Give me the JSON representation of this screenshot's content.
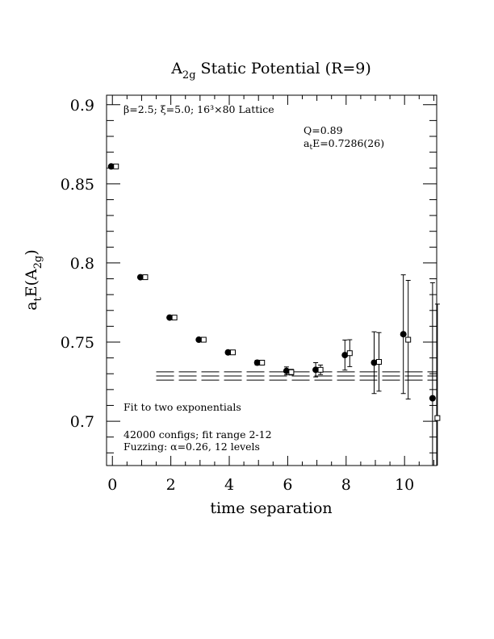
{
  "chart_data": {
    "type": "scatter",
    "title": "A",
    "title_sub": "2g",
    "title_rest": " Static Potential (R=9)",
    "xlabel": "time separation",
    "ylabel": {
      "a": "a",
      "t": "t",
      "E": "E(A",
      "sub": "2g",
      "close": ")"
    },
    "xlim": [
      -0.2,
      11.1
    ],
    "ylim": [
      0.672,
      0.906
    ],
    "x_ticks": [
      0,
      2,
      4,
      6,
      8,
      10
    ],
    "x_tick_labels": [
      "0",
      "2",
      "4",
      "6",
      "8",
      "10"
    ],
    "y_ticks": [
      0.7,
      0.75,
      0.8,
      0.85,
      0.9
    ],
    "y_tick_labels": [
      "0.7",
      "0.75",
      "0.8",
      "0.85",
      "0.9"
    ],
    "annotations": {
      "lattice": "β=2.5; ξ=5.0; 16³×80 Lattice",
      "q": "Q=0.89",
      "fit_a": "a",
      "fit_t": "t",
      "fit_rest": "E=0.7286(26)",
      "fit_method": "Fit to two exponentials",
      "configs": "42000 configs; fit range 2-12",
      "fuzzing": "Fuzzing: α=0.26, 12 levels"
    },
    "series": [
      {
        "marker": "filled-circle",
        "points": [
          {
            "x": 0,
            "y": 0.861,
            "err": 0.0006
          },
          {
            "x": 1,
            "y": 0.791,
            "err": 0.0008
          },
          {
            "x": 2,
            "y": 0.7655,
            "err": 0.0008
          },
          {
            "x": 3,
            "y": 0.7515,
            "err": 0.0009
          },
          {
            "x": 4,
            "y": 0.7435,
            "err": 0.001
          },
          {
            "x": 5,
            "y": 0.737,
            "err": 0.0015
          },
          {
            "x": 6,
            "y": 0.7318,
            "err": 0.0025
          },
          {
            "x": 7,
            "y": 0.7325,
            "err": 0.0045
          },
          {
            "x": 8,
            "y": 0.7418,
            "err": 0.0095
          },
          {
            "x": 9,
            "y": 0.737,
            "err": 0.0195
          },
          {
            "x": 10,
            "y": 0.755,
            "err": 0.0375
          },
          {
            "x": 11,
            "y": 0.7145,
            "err": 0.073
          }
        ]
      },
      {
        "marker": "open-square",
        "points": [
          {
            "x": 0,
            "y": 0.861,
            "err": 0.0006
          },
          {
            "x": 1,
            "y": 0.791,
            "err": 0.0008
          },
          {
            "x": 2,
            "y": 0.7655,
            "err": 0.0008
          },
          {
            "x": 3,
            "y": 0.7515,
            "err": 0.0009
          },
          {
            "x": 4,
            "y": 0.7435,
            "err": 0.001
          },
          {
            "x": 5,
            "y": 0.737,
            "err": 0.0012
          },
          {
            "x": 6,
            "y": 0.731,
            "err": 0.0018
          },
          {
            "x": 7,
            "y": 0.7325,
            "err": 0.003
          },
          {
            "x": 8,
            "y": 0.743,
            "err": 0.0085
          },
          {
            "x": 9,
            "y": 0.7375,
            "err": 0.0185
          },
          {
            "x": 10,
            "y": 0.7515,
            "err": 0.0375
          },
          {
            "x": 11,
            "y": 0.702,
            "err": 0.072
          }
        ]
      }
    ],
    "fit": {
      "x_range": [
        1.5,
        11.1
      ],
      "central": 0.7286,
      "error": 0.0026,
      "line_style": "long-dash"
    }
  }
}
